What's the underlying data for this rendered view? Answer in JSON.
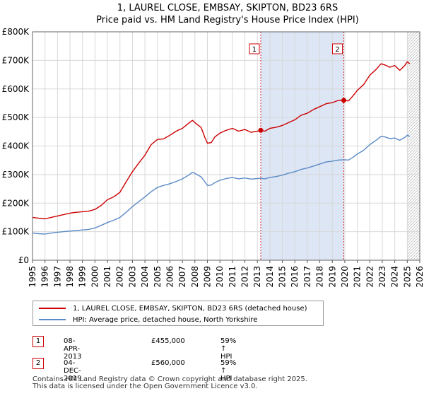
{
  "chart_data": {
    "type": "line",
    "title": "1, LAUREL CLOSE, EMBSAY, SKIPTON, BD23 6RS",
    "subtitle": "Price paid vs. HM Land Registry's House Price Index (HPI)",
    "xlim": [
      1995,
      2026
    ],
    "ylim": [
      0,
      800000
    ],
    "x_ticks": [
      "1995",
      "1996",
      "1997",
      "1998",
      "1999",
      "2000",
      "2001",
      "2002",
      "2003",
      "2004",
      "2005",
      "2006",
      "2007",
      "2008",
      "2009",
      "2010",
      "2011",
      "2012",
      "2013",
      "2014",
      "2015",
      "2016",
      "2017",
      "2018",
      "2019",
      "2020",
      "2021",
      "2022",
      "2023",
      "2024",
      "2025",
      "2026"
    ],
    "y_ticks": [
      {
        "value": 0,
        "label": "£0"
      },
      {
        "value": 100000,
        "label": "£100K"
      },
      {
        "value": 200000,
        "label": "£200K"
      },
      {
        "value": 300000,
        "label": "£300K"
      },
      {
        "value": 400000,
        "label": "£400K"
      },
      {
        "value": 500000,
        "label": "£500K"
      },
      {
        "value": 600000,
        "label": "£600K"
      },
      {
        "value": 700000,
        "label": "£700K"
      },
      {
        "value": 800000,
        "label": "£800K"
      }
    ],
    "grid": true,
    "sale_shading": {
      "from": 2013.27,
      "to": 2019.92,
      "color": "#dce6f5"
    },
    "future_hatch_from": 2025.0,
    "series": [
      {
        "name": "1, LAUREL CLOSE, EMBSAY, SKIPTON, BD23 6RS (detached house)",
        "color": "#cc0000",
        "points": [
          [
            1995.0,
            150000
          ],
          [
            1995.5,
            147000
          ],
          [
            1996.0,
            145000
          ],
          [
            1996.5,
            150000
          ],
          [
            1997.0,
            155000
          ],
          [
            1997.5,
            160000
          ],
          [
            1998.0,
            165000
          ],
          [
            1998.5,
            168000
          ],
          [
            1999.0,
            170000
          ],
          [
            1999.5,
            172000
          ],
          [
            2000.0,
            178000
          ],
          [
            2000.5,
            192000
          ],
          [
            2001.0,
            212000
          ],
          [
            2001.5,
            222000
          ],
          [
            2002.0,
            238000
          ],
          [
            2002.5,
            275000
          ],
          [
            2003.0,
            310000
          ],
          [
            2003.5,
            340000
          ],
          [
            2004.0,
            368000
          ],
          [
            2004.5,
            405000
          ],
          [
            2005.0,
            423000
          ],
          [
            2005.5,
            425000
          ],
          [
            2006.0,
            438000
          ],
          [
            2006.5,
            452000
          ],
          [
            2007.0,
            462000
          ],
          [
            2007.5,
            480000
          ],
          [
            2007.8,
            490000
          ],
          [
            2008.0,
            482000
          ],
          [
            2008.5,
            465000
          ],
          [
            2008.8,
            430000
          ],
          [
            2009.0,
            410000
          ],
          [
            2009.3,
            412000
          ],
          [
            2009.6,
            432000
          ],
          [
            2010.0,
            445000
          ],
          [
            2010.5,
            455000
          ],
          [
            2011.0,
            462000
          ],
          [
            2011.5,
            452000
          ],
          [
            2012.0,
            458000
          ],
          [
            2012.5,
            448000
          ],
          [
            2013.0,
            452000
          ],
          [
            2013.27,
            455000
          ],
          [
            2013.6,
            452000
          ],
          [
            2014.0,
            462000
          ],
          [
            2014.5,
            466000
          ],
          [
            2015.0,
            472000
          ],
          [
            2015.5,
            482000
          ],
          [
            2016.0,
            492000
          ],
          [
            2016.5,
            508000
          ],
          [
            2017.0,
            515000
          ],
          [
            2017.5,
            528000
          ],
          [
            2018.0,
            538000
          ],
          [
            2018.5,
            548000
          ],
          [
            2019.0,
            552000
          ],
          [
            2019.5,
            560000
          ],
          [
            2019.92,
            560000
          ],
          [
            2020.3,
            558000
          ],
          [
            2020.7,
            578000
          ],
          [
            2021.0,
            595000
          ],
          [
            2021.5,
            615000
          ],
          [
            2022.0,
            648000
          ],
          [
            2022.5,
            668000
          ],
          [
            2022.9,
            688000
          ],
          [
            2023.2,
            684000
          ],
          [
            2023.6,
            676000
          ],
          [
            2024.0,
            682000
          ],
          [
            2024.4,
            665000
          ],
          [
            2024.8,
            682000
          ],
          [
            2025.0,
            695000
          ],
          [
            2025.2,
            688000
          ]
        ]
      },
      {
        "name": "HPI: Average price, detached house, North Yorkshire",
        "color": "#5b8ac6",
        "points": [
          [
            1995.0,
            95000
          ],
          [
            1995.5,
            93000
          ],
          [
            1996.0,
            92000
          ],
          [
            1996.5,
            95000
          ],
          [
            1997.0,
            98000
          ],
          [
            1997.5,
            100000
          ],
          [
            1998.0,
            102000
          ],
          [
            1998.5,
            104000
          ],
          [
            1999.0,
            106000
          ],
          [
            1999.5,
            108000
          ],
          [
            2000.0,
            113000
          ],
          [
            2000.5,
            122000
          ],
          [
            2001.0,
            132000
          ],
          [
            2001.5,
            140000
          ],
          [
            2002.0,
            150000
          ],
          [
            2002.5,
            168000
          ],
          [
            2003.0,
            188000
          ],
          [
            2003.5,
            205000
          ],
          [
            2004.0,
            222000
          ],
          [
            2004.5,
            240000
          ],
          [
            2005.0,
            255000
          ],
          [
            2005.5,
            262000
          ],
          [
            2006.0,
            268000
          ],
          [
            2006.5,
            276000
          ],
          [
            2007.0,
            285000
          ],
          [
            2007.5,
            298000
          ],
          [
            2007.8,
            308000
          ],
          [
            2008.0,
            304000
          ],
          [
            2008.5,
            292000
          ],
          [
            2008.8,
            275000
          ],
          [
            2009.0,
            262000
          ],
          [
            2009.3,
            263000
          ],
          [
            2009.6,
            272000
          ],
          [
            2010.0,
            280000
          ],
          [
            2010.5,
            286000
          ],
          [
            2011.0,
            290000
          ],
          [
            2011.5,
            285000
          ],
          [
            2012.0,
            288000
          ],
          [
            2012.5,
            284000
          ],
          [
            2013.0,
            286000
          ],
          [
            2013.27,
            287000
          ],
          [
            2013.6,
            285000
          ],
          [
            2014.0,
            290000
          ],
          [
            2014.5,
            293000
          ],
          [
            2015.0,
            298000
          ],
          [
            2015.5,
            305000
          ],
          [
            2016.0,
            310000
          ],
          [
            2016.5,
            318000
          ],
          [
            2017.0,
            323000
          ],
          [
            2017.5,
            330000
          ],
          [
            2018.0,
            337000
          ],
          [
            2018.5,
            344000
          ],
          [
            2019.0,
            347000
          ],
          [
            2019.5,
            351000
          ],
          [
            2019.92,
            352000
          ],
          [
            2020.3,
            351000
          ],
          [
            2020.7,
            362000
          ],
          [
            2021.0,
            372000
          ],
          [
            2021.5,
            385000
          ],
          [
            2022.0,
            405000
          ],
          [
            2022.5,
            420000
          ],
          [
            2022.9,
            434000
          ],
          [
            2023.2,
            432000
          ],
          [
            2023.6,
            426000
          ],
          [
            2024.0,
            428000
          ],
          [
            2024.4,
            420000
          ],
          [
            2024.8,
            430000
          ],
          [
            2025.0,
            438000
          ],
          [
            2025.2,
            434000
          ]
        ]
      }
    ],
    "annotations": [
      {
        "label": "1",
        "x": 2013.27,
        "y": 455000
      },
      {
        "label": "2",
        "x": 2019.92,
        "y": 560000
      }
    ]
  },
  "legend": {
    "items": [
      {
        "label": "1, LAUREL CLOSE, EMBSAY, SKIPTON, BD23 6RS (detached house)",
        "color": "#cc0000"
      },
      {
        "label": "HPI: Average price, detached house, North Yorkshire",
        "color": "#5b8ac6"
      }
    ]
  },
  "sales": [
    {
      "num": "1",
      "date": "08-APR-2013",
      "price": "£455,000",
      "hpi": "59% ↑ HPI"
    },
    {
      "num": "2",
      "date": "04-DEC-2019",
      "price": "£560,000",
      "hpi": "59% ↑ HPI"
    }
  ],
  "footer": {
    "text": "Contains HM Land Registry data © Crown copyright and database right 2025.\nThis data is licensed under the Open Government Licence v3.0."
  }
}
